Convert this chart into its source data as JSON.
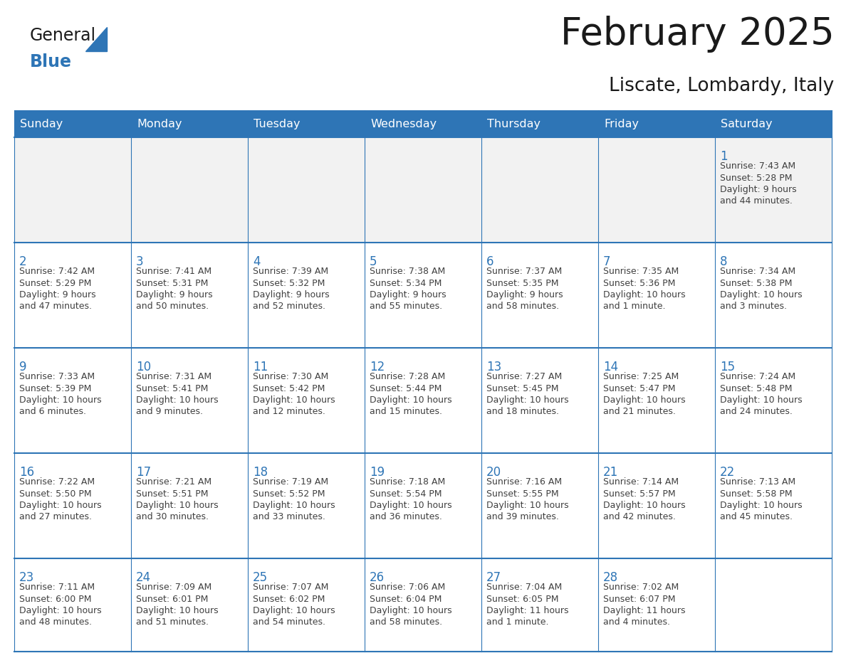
{
  "title": "February 2025",
  "subtitle": "Liscate, Lombardy, Italy",
  "header_color": "#2E75B6",
  "header_text_color": "#FFFFFF",
  "grid_line_color": "#2E75B6",
  "day_number_color": "#2E75B6",
  "cell_text_color": "#404040",
  "first_row_bg": "#F2F2F2",
  "days_of_week": [
    "Sunday",
    "Monday",
    "Tuesday",
    "Wednesday",
    "Thursday",
    "Friday",
    "Saturday"
  ],
  "logo_general_color": "#1A1A1A",
  "logo_blue_color": "#2E75B6",
  "logo_triangle_color": "#2E75B6",
  "title_color": "#1A1A1A",
  "subtitle_color": "#1A1A1A",
  "weeks": [
    [
      {
        "day": "",
        "lines": []
      },
      {
        "day": "",
        "lines": []
      },
      {
        "day": "",
        "lines": []
      },
      {
        "day": "",
        "lines": []
      },
      {
        "day": "",
        "lines": []
      },
      {
        "day": "",
        "lines": []
      },
      {
        "day": "1",
        "lines": [
          "Sunrise: 7:43 AM",
          "Sunset: 5:28 PM",
          "Daylight: 9 hours",
          "and 44 minutes."
        ]
      }
    ],
    [
      {
        "day": "2",
        "lines": [
          "Sunrise: 7:42 AM",
          "Sunset: 5:29 PM",
          "Daylight: 9 hours",
          "and 47 minutes."
        ]
      },
      {
        "day": "3",
        "lines": [
          "Sunrise: 7:41 AM",
          "Sunset: 5:31 PM",
          "Daylight: 9 hours",
          "and 50 minutes."
        ]
      },
      {
        "day": "4",
        "lines": [
          "Sunrise: 7:39 AM",
          "Sunset: 5:32 PM",
          "Daylight: 9 hours",
          "and 52 minutes."
        ]
      },
      {
        "day": "5",
        "lines": [
          "Sunrise: 7:38 AM",
          "Sunset: 5:34 PM",
          "Daylight: 9 hours",
          "and 55 minutes."
        ]
      },
      {
        "day": "6",
        "lines": [
          "Sunrise: 7:37 AM",
          "Sunset: 5:35 PM",
          "Daylight: 9 hours",
          "and 58 minutes."
        ]
      },
      {
        "day": "7",
        "lines": [
          "Sunrise: 7:35 AM",
          "Sunset: 5:36 PM",
          "Daylight: 10 hours",
          "and 1 minute."
        ]
      },
      {
        "day": "8",
        "lines": [
          "Sunrise: 7:34 AM",
          "Sunset: 5:38 PM",
          "Daylight: 10 hours",
          "and 3 minutes."
        ]
      }
    ],
    [
      {
        "day": "9",
        "lines": [
          "Sunrise: 7:33 AM",
          "Sunset: 5:39 PM",
          "Daylight: 10 hours",
          "and 6 minutes."
        ]
      },
      {
        "day": "10",
        "lines": [
          "Sunrise: 7:31 AM",
          "Sunset: 5:41 PM",
          "Daylight: 10 hours",
          "and 9 minutes."
        ]
      },
      {
        "day": "11",
        "lines": [
          "Sunrise: 7:30 AM",
          "Sunset: 5:42 PM",
          "Daylight: 10 hours",
          "and 12 minutes."
        ]
      },
      {
        "day": "12",
        "lines": [
          "Sunrise: 7:28 AM",
          "Sunset: 5:44 PM",
          "Daylight: 10 hours",
          "and 15 minutes."
        ]
      },
      {
        "day": "13",
        "lines": [
          "Sunrise: 7:27 AM",
          "Sunset: 5:45 PM",
          "Daylight: 10 hours",
          "and 18 minutes."
        ]
      },
      {
        "day": "14",
        "lines": [
          "Sunrise: 7:25 AM",
          "Sunset: 5:47 PM",
          "Daylight: 10 hours",
          "and 21 minutes."
        ]
      },
      {
        "day": "15",
        "lines": [
          "Sunrise: 7:24 AM",
          "Sunset: 5:48 PM",
          "Daylight: 10 hours",
          "and 24 minutes."
        ]
      }
    ],
    [
      {
        "day": "16",
        "lines": [
          "Sunrise: 7:22 AM",
          "Sunset: 5:50 PM",
          "Daylight: 10 hours",
          "and 27 minutes."
        ]
      },
      {
        "day": "17",
        "lines": [
          "Sunrise: 7:21 AM",
          "Sunset: 5:51 PM",
          "Daylight: 10 hours",
          "and 30 minutes."
        ]
      },
      {
        "day": "18",
        "lines": [
          "Sunrise: 7:19 AM",
          "Sunset: 5:52 PM",
          "Daylight: 10 hours",
          "and 33 minutes."
        ]
      },
      {
        "day": "19",
        "lines": [
          "Sunrise: 7:18 AM",
          "Sunset: 5:54 PM",
          "Daylight: 10 hours",
          "and 36 minutes."
        ]
      },
      {
        "day": "20",
        "lines": [
          "Sunrise: 7:16 AM",
          "Sunset: 5:55 PM",
          "Daylight: 10 hours",
          "and 39 minutes."
        ]
      },
      {
        "day": "21",
        "lines": [
          "Sunrise: 7:14 AM",
          "Sunset: 5:57 PM",
          "Daylight: 10 hours",
          "and 42 minutes."
        ]
      },
      {
        "day": "22",
        "lines": [
          "Sunrise: 7:13 AM",
          "Sunset: 5:58 PM",
          "Daylight: 10 hours",
          "and 45 minutes."
        ]
      }
    ],
    [
      {
        "day": "23",
        "lines": [
          "Sunrise: 7:11 AM",
          "Sunset: 6:00 PM",
          "Daylight: 10 hours",
          "and 48 minutes."
        ]
      },
      {
        "day": "24",
        "lines": [
          "Sunrise: 7:09 AM",
          "Sunset: 6:01 PM",
          "Daylight: 10 hours",
          "and 51 minutes."
        ]
      },
      {
        "day": "25",
        "lines": [
          "Sunrise: 7:07 AM",
          "Sunset: 6:02 PM",
          "Daylight: 10 hours",
          "and 54 minutes."
        ]
      },
      {
        "day": "26",
        "lines": [
          "Sunrise: 7:06 AM",
          "Sunset: 6:04 PM",
          "Daylight: 10 hours",
          "and 58 minutes."
        ]
      },
      {
        "day": "27",
        "lines": [
          "Sunrise: 7:04 AM",
          "Sunset: 6:05 PM",
          "Daylight: 11 hours",
          "and 1 minute."
        ]
      },
      {
        "day": "28",
        "lines": [
          "Sunrise: 7:02 AM",
          "Sunset: 6:07 PM",
          "Daylight: 11 hours",
          "and 4 minutes."
        ]
      },
      {
        "day": "",
        "lines": []
      }
    ]
  ]
}
